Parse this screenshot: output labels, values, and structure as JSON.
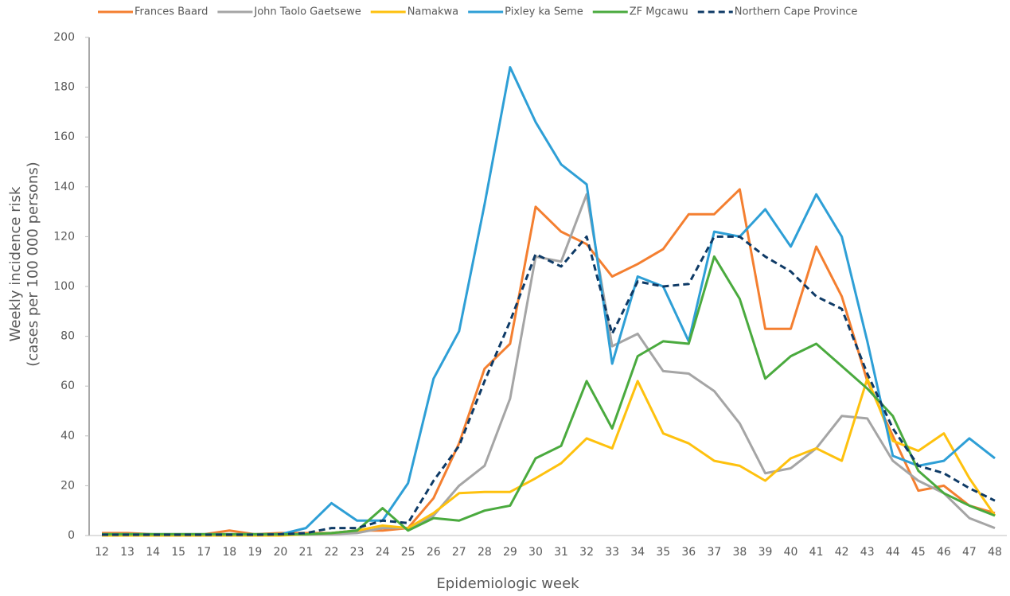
{
  "chart_data": {
    "type": "line",
    "x_label": "Epidemiologic week",
    "y_label": [
      "Weekly incidence risk",
      "(cases per 100 000 persons)"
    ],
    "categories": [
      "12",
      "13",
      "14",
      "15",
      "17",
      "18",
      "19",
      "20",
      "21",
      "22",
      "23",
      "24",
      "25",
      "26",
      "27",
      "28",
      "29",
      "30",
      "31",
      "32",
      "33",
      "34",
      "35",
      "36",
      "37",
      "38",
      "39",
      "40",
      "41",
      "42",
      "43",
      "44",
      "45",
      "46",
      "47",
      "48"
    ],
    "ylim": [
      0,
      200
    ],
    "yticks": [
      0,
      20,
      40,
      60,
      80,
      100,
      120,
      140,
      160,
      180,
      200
    ],
    "grid": false,
    "legend": "top",
    "series": [
      {
        "name": "Frances Baard",
        "color": "#f47f30",
        "dashed": false,
        "values": [
          1,
          1,
          0.5,
          0.5,
          0.5,
          2,
          0.5,
          1,
          1,
          1,
          2,
          2,
          3,
          15,
          37,
          67,
          77,
          132,
          122,
          117,
          104,
          109,
          115,
          129,
          129,
          139,
          83,
          83,
          116,
          96,
          62,
          40,
          18,
          20,
          12,
          9
        ]
      },
      {
        "name": "John Taolo Gaetsewe",
        "color": "#a5a5a5",
        "dashed": false,
        "values": [
          0.3,
          0.3,
          0.3,
          0.3,
          0.3,
          0.3,
          0.3,
          0.3,
          0.3,
          0.5,
          1,
          3,
          3,
          8,
          20,
          28,
          55,
          112,
          110,
          137,
          76,
          81,
          66,
          65,
          58,
          45,
          25,
          27,
          35,
          48,
          47,
          30,
          22,
          17,
          7,
          3
        ]
      },
      {
        "name": "Namakwa",
        "color": "#fec10e",
        "dashed": false,
        "values": [
          0,
          0,
          0,
          0,
          0,
          0,
          0,
          0,
          0.5,
          1,
          2,
          4,
          3,
          9,
          17,
          17.5,
          17.5,
          23,
          29,
          39,
          35,
          62,
          41,
          37,
          30,
          28,
          22,
          31,
          35,
          30,
          63,
          38,
          34,
          41,
          23,
          8
        ]
      },
      {
        "name": "Pixley ka Seme",
        "color": "#2e9fd6",
        "dashed": false,
        "values": [
          0.5,
          0.5,
          0.5,
          0.5,
          0.5,
          0.5,
          0.5,
          0.5,
          3,
          13,
          6,
          6,
          21,
          63,
          82,
          133,
          188,
          166,
          149,
          141,
          69,
          104,
          100,
          78,
          122,
          120,
          131,
          116,
          137,
          120,
          78,
          32,
          28,
          30,
          39,
          31
        ]
      },
      {
        "name": "ZF Mgcawu",
        "color": "#4aaa3e",
        "dashed": false,
        "values": [
          0.5,
          0.5,
          0.5,
          0.5,
          0.5,
          0.5,
          0.5,
          0.5,
          0.5,
          1,
          2,
          11,
          2,
          7,
          6,
          10,
          12,
          31,
          36,
          62,
          43,
          72,
          78,
          77,
          112,
          95,
          63,
          72,
          77,
          68,
          59,
          48,
          26,
          17,
          12,
          8
        ]
      },
      {
        "name": "Northern Cape Province",
        "color": "#0e3a66",
        "dashed": true,
        "values": [
          0.3,
          0.3,
          0.3,
          0.3,
          0.3,
          0.3,
          0.3,
          0.5,
          1,
          3,
          3,
          6,
          5,
          22,
          36,
          62,
          86,
          113,
          108,
          120,
          81,
          102,
          100,
          101,
          120,
          120,
          112,
          106,
          96,
          91,
          65,
          43,
          28,
          25,
          19,
          14
        ]
      }
    ]
  }
}
